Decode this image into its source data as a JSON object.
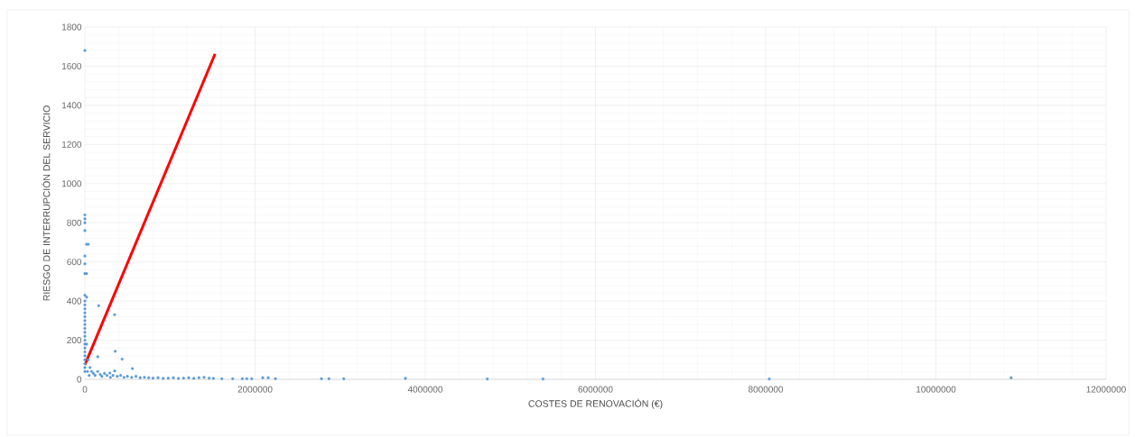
{
  "chart_data": {
    "type": "scatter",
    "xlabel": "COSTES DE RENOVACIÓN (€)",
    "ylabel": "RIESGO DE INTERRUPCIÓN DEL SERVICIO",
    "xlim": [
      0,
      12000000
    ],
    "ylim": [
      0,
      1800
    ],
    "xticks": [
      0,
      2000000,
      4000000,
      6000000,
      8000000,
      10000000,
      12000000
    ],
    "yticks": [
      0,
      200,
      400,
      600,
      800,
      1000,
      1200,
      1400,
      1600,
      1800
    ],
    "grid": true,
    "series": [
      {
        "color": "#5b9bd5",
        "marker": "circle",
        "x": [
          0,
          0,
          0,
          0,
          0,
          20000,
          40000,
          0,
          0,
          0,
          20000,
          0,
          20000,
          0,
          0,
          0,
          0,
          0,
          0,
          0,
          0,
          0,
          0,
          0,
          0,
          0,
          0,
          0,
          0,
          0,
          0,
          0,
          20000,
          40000,
          60000,
          30000,
          50000,
          162000,
          350000,
          357000,
          438000,
          152000,
          559000,
          350000,
          294000,
          80000,
          100000,
          120000,
          150000,
          180000,
          200000,
          230000,
          260000,
          300000,
          330000,
          380000,
          420000,
          460000,
          500000,
          550000,
          600000,
          650000,
          700000,
          750000,
          800000,
          860000,
          920000,
          980000,
          1040000,
          1100000,
          1160000,
          1220000,
          1280000,
          1340000,
          1400000,
          1460000,
          1510000,
          1610000,
          1737000,
          1850000,
          1902000,
          1960000,
          2090000,
          2154000,
          2239000,
          2780000,
          2868000,
          3042000,
          3767000,
          4728000,
          5383000,
          8042000,
          10884000
        ],
        "values": [
          1680,
          840,
          820,
          800,
          760,
          690,
          690,
          630,
          590,
          540,
          540,
          430,
          420,
          400,
          380,
          360,
          340,
          320,
          300,
          280,
          260,
          240,
          220,
          200,
          180,
          160,
          140,
          120,
          100,
          80,
          60,
          40,
          180,
          100,
          60,
          40,
          20,
          376,
          330,
          143,
          103,
          115,
          55,
          43,
          32,
          40,
          30,
          20,
          40,
          25,
          15,
          30,
          20,
          10,
          20,
          15,
          20,
          10,
          15,
          10,
          15,
          8,
          10,
          8,
          6,
          8,
          5,
          6,
          8,
          5,
          6,
          8,
          5,
          8,
          10,
          6,
          5,
          3,
          3,
          3,
          3,
          3,
          8,
          8,
          3,
          3,
          3,
          3,
          5,
          2,
          2,
          2,
          8
        ]
      },
      {
        "type": "line",
        "color": "#ff0000",
        "marker": "none",
        "x": [
          0,
          1530000
        ],
        "values": [
          74,
          1663
        ]
      }
    ]
  }
}
